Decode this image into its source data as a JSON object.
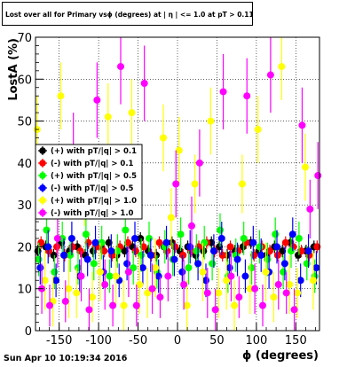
{
  "plot_title": "Lost over all for Primary vsϕ (degrees) at | η | <= 1.0 at pT > 0.11",
  "timestamp": "Sun Apr 10 10:19:34 2016",
  "colors": {
    "pt01": "#000000",
    "neg01": "#ff0000",
    "pos05": "#00ff00",
    "neg05": "#0000ff",
    "pos10": "#ffff00",
    "neg10": "#ff00ff"
  },
  "chart_data": {
    "type": "scatter",
    "xlabel": "ϕ (degrees)",
    "ylabel": "LostA (%)",
    "xlim": [
      -180,
      180
    ],
    "ylim": [
      0,
      70
    ],
    "xticks": [
      "-150",
      "-100",
      "-50",
      "0",
      "50",
      "100",
      "150"
    ],
    "yticks": [
      "0",
      "10",
      "20",
      "30",
      "40",
      "50",
      "60",
      "70"
    ],
    "grid": true,
    "legend_position": "middle-left",
    "x": [
      -175,
      -165,
      -155,
      -145,
      -135,
      -125,
      -115,
      -105,
      -95,
      -85,
      -75,
      -65,
      -55,
      -45,
      -35,
      -25,
      -15,
      -5,
      5,
      15,
      25,
      35,
      45,
      55,
      65,
      75,
      85,
      95,
      105,
      115,
      125,
      135,
      145,
      155,
      165,
      175
    ],
    "series": [
      {
        "name": "(+) with pT/|q| > 0.1",
        "color": "#000000",
        "marker": "circle",
        "values": [
          19,
          20,
          18,
          21,
          19,
          20,
          18,
          19,
          20,
          21,
          18,
          19,
          20,
          22,
          19,
          18,
          20,
          21,
          19,
          20,
          18,
          19,
          21,
          20,
          18,
          19,
          20,
          21,
          19,
          18,
          20,
          19,
          21,
          18,
          19,
          20
        ],
        "errors": [
          1.5,
          1.5,
          1.5,
          1.5,
          1.5,
          1.5,
          1.5,
          1.5,
          1.5,
          1.5,
          1.5,
          1.5,
          1.5,
          1.5,
          1.5,
          1.5,
          1.5,
          1.5,
          1.5,
          1.5,
          1.5,
          1.5,
          1.5,
          1.5,
          1.5,
          1.5,
          1.5,
          1.5,
          1.5,
          1.5,
          1.5,
          1.5,
          1.5,
          1.5,
          1.5,
          1.5
        ]
      },
      {
        "name": "(-) with pT/|q| > 0.1",
        "color": "#ff0000",
        "marker": "circle",
        "values": [
          21,
          19,
          20,
          18,
          20,
          19,
          21,
          20,
          19,
          18,
          20,
          21,
          19,
          20,
          18,
          21,
          19,
          20,
          18,
          19,
          20,
          21,
          19,
          18,
          20,
          19,
          21,
          18,
          20,
          19,
          18,
          21,
          20,
          19,
          18,
          20
        ],
        "errors": [
          1.5,
          1.5,
          1.5,
          1.5,
          1.5,
          1.5,
          1.5,
          1.5,
          1.5,
          1.5,
          1.5,
          1.5,
          1.5,
          1.5,
          1.5,
          1.5,
          1.5,
          1.5,
          1.5,
          1.5,
          1.5,
          1.5,
          1.5,
          1.5,
          1.5,
          1.5,
          1.5,
          1.5,
          1.5,
          1.5,
          1.5,
          1.5,
          1.5,
          1.5,
          1.5,
          1.5
        ]
      },
      {
        "name": "(+) with pT/|q| > 0.5",
        "color": "#00ff00",
        "marker": "circle",
        "values": [
          17,
          24,
          14,
          22,
          18,
          15,
          23,
          16,
          21,
          13,
          19,
          24,
          15,
          18,
          22,
          14,
          20,
          17,
          23,
          15,
          19,
          21,
          16,
          24,
          13,
          18,
          22,
          15,
          20,
          17,
          23,
          14,
          19,
          22,
          16,
          13
        ],
        "errors": [
          4,
          4,
          4,
          4,
          4,
          4,
          4,
          4,
          4,
          4,
          4,
          4,
          4,
          4,
          4,
          4,
          4,
          4,
          4,
          4,
          4,
          4,
          4,
          4,
          4,
          4,
          4,
          4,
          4,
          4,
          4,
          4,
          4,
          4,
          4,
          4
        ]
      },
      {
        "name": "(-) with pT/|q| > 0.5",
        "color": "#0000ff",
        "marker": "circle",
        "values": [
          15,
          20,
          12,
          18,
          22,
          13,
          17,
          21,
          14,
          19,
          12,
          16,
          22,
          15,
          18,
          13,
          21,
          17,
          14,
          20,
          16,
          12,
          19,
          22,
          15,
          17,
          13,
          21,
          18,
          14,
          20,
          16,
          23,
          12,
          19,
          15
        ],
        "errors": [
          4,
          4,
          4,
          4,
          4,
          4,
          4,
          4,
          4,
          4,
          4,
          4,
          4,
          4,
          4,
          4,
          4,
          4,
          4,
          4,
          4,
          4,
          4,
          4,
          4,
          4,
          4,
          4,
          4,
          4,
          4,
          4,
          4,
          4,
          4,
          4
        ]
      },
      {
        "name": "(+) with pT/|q| > 1.0",
        "color": "#ffff00",
        "marker": "circle",
        "values": [
          48,
          12,
          7,
          56,
          10,
          9,
          32,
          8,
          14,
          51,
          13,
          6,
          52,
          11,
          9,
          15,
          46,
          27,
          43,
          6,
          35,
          14,
          50,
          9,
          12,
          6,
          35,
          10,
          48,
          14,
          8,
          63,
          11,
          9,
          39,
          12
        ],
        "errors": [
          8,
          7,
          6,
          8,
          7,
          6,
          7,
          6,
          7,
          8,
          7,
          6,
          8,
          7,
          6,
          7,
          8,
          7,
          8,
          6,
          7,
          7,
          8,
          6,
          7,
          6,
          7,
          6,
          8,
          7,
          6,
          8,
          7,
          6,
          8,
          7
        ]
      },
      {
        "name": "(-) with pT/|q| > 1.0",
        "color": "#ff00ff",
        "marker": "circle",
        "values": [
          10,
          6,
          22,
          7,
          43,
          13,
          5,
          55,
          11,
          6,
          63,
          14,
          6,
          59,
          10,
          8,
          13,
          35,
          11,
          25,
          40,
          9,
          5,
          57,
          13,
          8,
          56,
          10,
          6,
          61,
          11,
          9,
          5,
          49,
          29,
          37
        ],
        "errors": [
          6,
          5,
          7,
          5,
          9,
          6,
          5,
          9,
          6,
          5,
          9,
          6,
          5,
          9,
          6,
          5,
          6,
          8,
          6,
          7,
          8,
          6,
          5,
          9,
          6,
          5,
          9,
          6,
          5,
          9,
          6,
          5,
          5,
          9,
          7,
          8
        ]
      }
    ]
  }
}
